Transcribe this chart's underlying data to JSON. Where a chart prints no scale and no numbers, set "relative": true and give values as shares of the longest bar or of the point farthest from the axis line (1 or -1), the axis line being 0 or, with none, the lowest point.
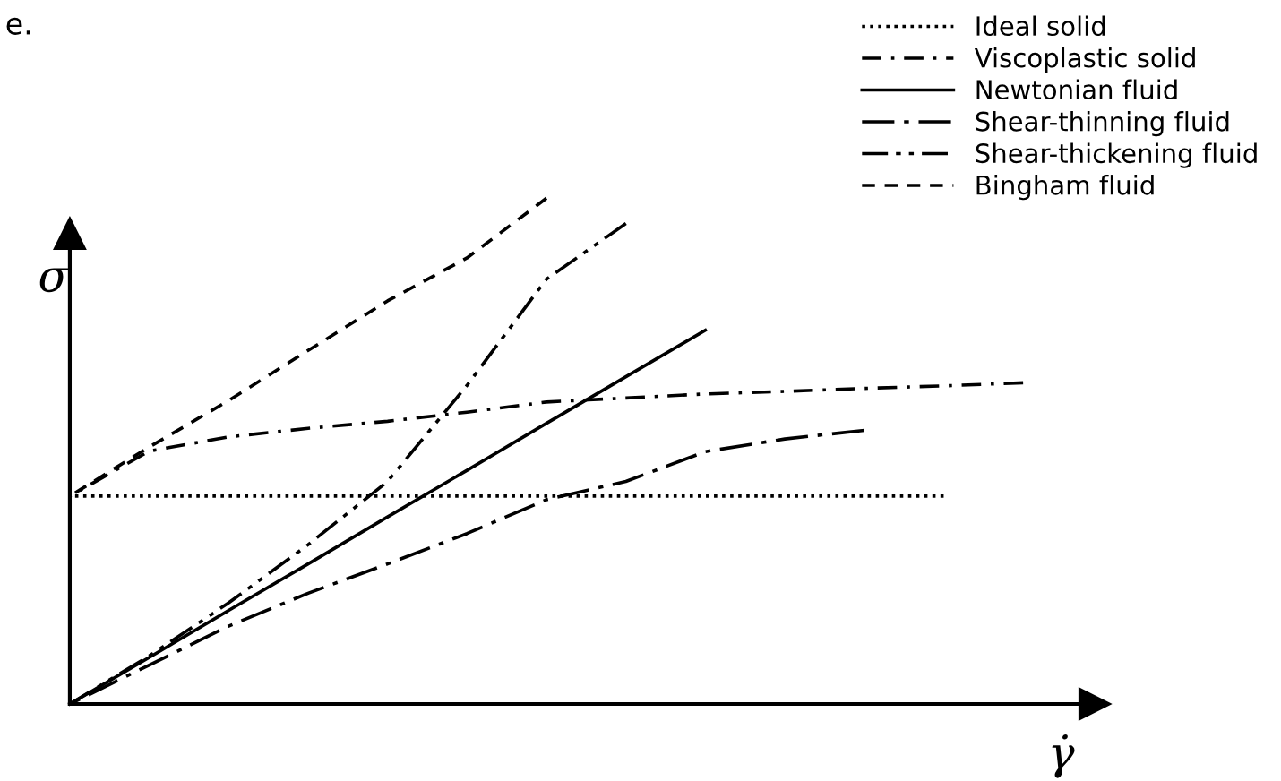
{
  "chart_data": {
    "type": "line",
    "relative": true,
    "ylabel": "σ",
    "xlabel": "γ̇",
    "annotations": [
      "e."
    ],
    "legend": "top right",
    "categories": [
      null,
      null,
      null,
      null,
      null,
      null,
      null,
      null,
      null,
      null,
      null,
      null,
      null
    ],
    "series": [
      {
        "name": "Ideal solid",
        "color": "#000000",
        "line_style": "dotted",
        "values": [
          0.411,
          0.411,
          0.411,
          0.411,
          0.411,
          0.411,
          0.411,
          0.411,
          0.411,
          0.411,
          0.411,
          0.411,
          null
        ]
      },
      {
        "name": "Viscoplastic solid",
        "color": "#000000",
        "line_style": "dashdot",
        "values": [
          0.411,
          0.5,
          0.528,
          0.545,
          0.559,
          0.577,
          0.597,
          0.605,
          0.613,
          0.618,
          0.624,
          0.629,
          0.635
        ]
      },
      {
        "name": "Newtonian fluid",
        "color": "#000000",
        "line_style": "solid",
        "values": [
          0,
          0.092,
          0.185,
          0.277,
          0.37,
          0.462,
          0.555,
          0.647,
          0.739,
          null,
          null,
          null,
          null
        ]
      },
      {
        "name": "Shear-thinning fluid",
        "color": "#000000",
        "line_style": "longdashdot",
        "values": [
          0,
          0.077,
          0.154,
          0.219,
          0.277,
          0.337,
          0.404,
          0.44,
          0.499,
          0.524,
          0.541,
          null,
          null
        ]
      },
      {
        "name": "Shear-thickening fluid",
        "color": "#000000",
        "line_style": "dashdotdot",
        "values": [
          0,
          0.095,
          0.2,
          0.315,
          0.44,
          0.63,
          0.84,
          0.95,
          null,
          null,
          null,
          null,
          null
        ]
      },
      {
        "name": "Bingham fluid",
        "color": "#000000",
        "line_style": "dashed",
        "values": [
          0.411,
          0.508,
          0.6,
          0.699,
          0.797,
          0.882,
          1.0,
          null,
          null,
          null,
          null,
          null,
          null
        ]
      }
    ]
  }
}
